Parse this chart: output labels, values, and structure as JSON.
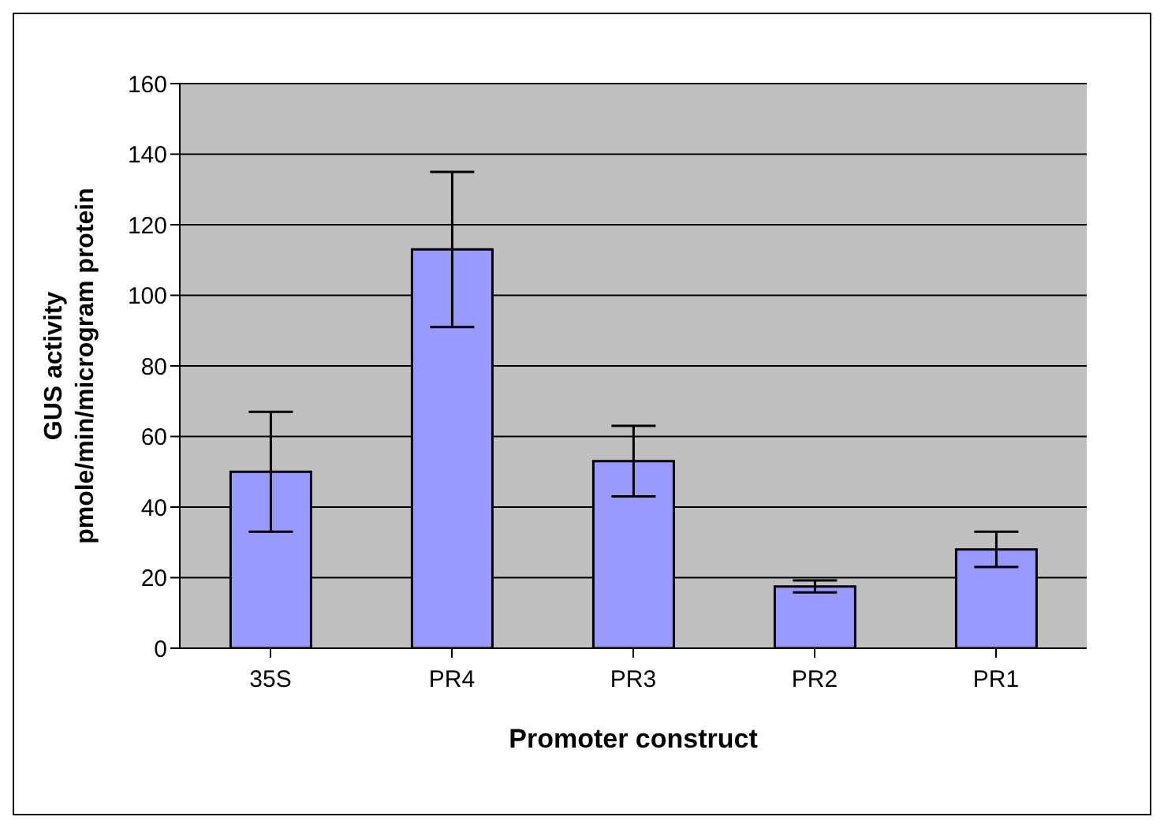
{
  "chart_data": {
    "type": "bar",
    "xlabel": "Promoter construct",
    "ylabel": "GUS activity\npmole/min/microgram protein",
    "categories": [
      "35S",
      "PR4",
      "PR3",
      "PR2",
      "PR1"
    ],
    "values": [
      50,
      113,
      53,
      17.5,
      28
    ],
    "errors": [
      17,
      22,
      10,
      1.7,
      5
    ],
    "color": "#9999ff",
    "ylim": [
      0,
      160
    ],
    "yticks": [
      0,
      20,
      40,
      60,
      80,
      100,
      120,
      140,
      160
    ],
    "grid": "y",
    "legend": false
  }
}
